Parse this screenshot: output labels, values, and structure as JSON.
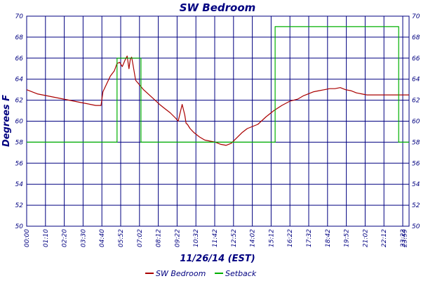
{
  "chart_data": {
    "type": "line",
    "title": "SW Bedroom",
    "xlabel": "11/26/14 (EST)",
    "ylabel": "Degrees F",
    "ylim": [
      50,
      70
    ],
    "yticks": [
      50,
      52,
      54,
      56,
      58,
      60,
      62,
      64,
      66,
      68,
      70
    ],
    "x_tick_labels": [
      "00:00",
      "01:10",
      "02:20",
      "03:30",
      "04:40",
      "05:52",
      "07:02",
      "08:12",
      "09:22",
      "10:32",
      "11:42",
      "12:52",
      "14:02",
      "15:12",
      "16:22",
      "17:32",
      "18:42",
      "19:52",
      "21:02",
      "22:12",
      "23:22",
      "23:59"
    ],
    "x_unit": "minutes since 00:00",
    "xlim": [
      0,
      1439
    ],
    "grid": true,
    "legend_position": "bottom",
    "series": [
      {
        "name": "SW Bedroom",
        "color": "#aa0000",
        "x": [
          0,
          40,
          80,
          120,
          160,
          200,
          240,
          260,
          280,
          287,
          300,
          315,
          330,
          340,
          350,
          360,
          370,
          378,
          385,
          390,
          395,
          400,
          410,
          420,
          440,
          470,
          500,
          520,
          540,
          560,
          570,
          585,
          595,
          600,
          605,
          615,
          630,
          650,
          670,
          690,
          710,
          730,
          750,
          770,
          790,
          810,
          830,
          850,
          870,
          900,
          930,
          960,
          990,
          1020,
          1040,
          1060,
          1080,
          1100,
          1120,
          1140,
          1160,
          1180,
          1200,
          1220,
          1240,
          1260,
          1280,
          1300,
          1320,
          1340,
          1360,
          1380,
          1400,
          1420,
          1439
        ],
        "values": [
          63.0,
          62.6,
          62.4,
          62.2,
          62.0,
          61.8,
          61.6,
          61.5,
          61.5,
          62.8,
          63.5,
          64.3,
          64.8,
          65.5,
          65.6,
          65.2,
          65.8,
          66.2,
          65.0,
          65.9,
          66.1,
          65.4,
          63.9,
          63.6,
          63.0,
          62.3,
          61.6,
          61.2,
          60.8,
          60.3,
          60.0,
          61.6,
          60.6,
          59.8,
          59.7,
          59.3,
          58.9,
          58.5,
          58.2,
          58.1,
          58.0,
          57.8,
          57.7,
          57.9,
          58.4,
          58.9,
          59.3,
          59.5,
          59.7,
          60.4,
          61.0,
          61.5,
          61.9,
          62.1,
          62.4,
          62.6,
          62.8,
          62.9,
          63.0,
          63.1,
          63.1,
          63.2,
          63.0,
          62.9,
          62.7,
          62.6,
          62.5,
          62.5,
          62.5,
          62.5,
          62.5,
          62.5,
          62.5,
          62.5,
          62.5
        ]
      },
      {
        "name": "Setback",
        "color": "#00b000",
        "x": [
          0,
          340,
          340,
          430,
          430,
          935,
          935,
          1400,
          1400,
          1439
        ],
        "values": [
          58,
          58,
          66,
          66,
          58,
          58,
          69,
          69,
          58,
          58
        ]
      }
    ]
  }
}
